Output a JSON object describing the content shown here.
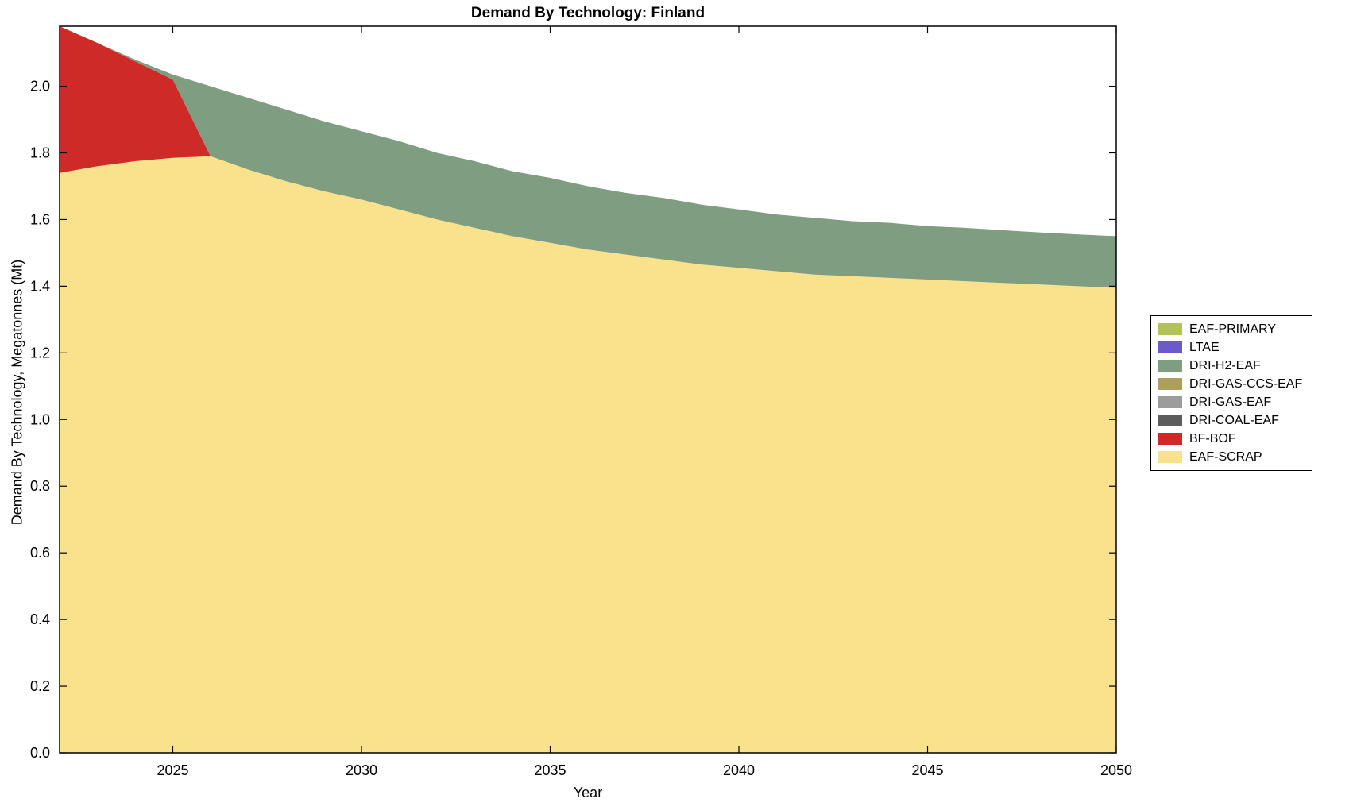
{
  "chart_data": {
    "type": "area",
    "stacked": true,
    "title": "Demand By Technology: Finland",
    "xlabel": "Year",
    "ylabel": "Demand By Technology, Megatonnes (Mt)",
    "x_range": [
      2022,
      2050
    ],
    "y_range": [
      0,
      2.18
    ],
    "x_ticks": [
      2025,
      2030,
      2035,
      2040,
      2045,
      2050
    ],
    "y_ticks": [
      0.0,
      0.2,
      0.4,
      0.6,
      0.8,
      1.0,
      1.2,
      1.4,
      1.6,
      1.8,
      2.0
    ],
    "grid": false,
    "years": [
      2022,
      2023,
      2024,
      2025,
      2026,
      2027,
      2028,
      2029,
      2030,
      2031,
      2032,
      2033,
      2034,
      2035,
      2036,
      2037,
      2038,
      2039,
      2040,
      2041,
      2042,
      2043,
      2044,
      2045,
      2046,
      2047,
      2048,
      2049,
      2050
    ],
    "stack_order_bottom_to_top": [
      "EAF-SCRAP",
      "BF-BOF",
      "DRI-COAL-EAF",
      "DRI-GAS-EAF",
      "DRI-GAS-CCS-EAF",
      "DRI-H2-EAF",
      "LTAE",
      "EAF-PRIMARY"
    ],
    "series": [
      {
        "name": "EAF-SCRAP",
        "color": "#FAE18C",
        "values": [
          1.74,
          1.76,
          1.775,
          1.785,
          1.79,
          1.75,
          1.715,
          1.685,
          1.66,
          1.63,
          1.6,
          1.575,
          1.55,
          1.53,
          1.51,
          1.495,
          1.48,
          1.465,
          1.455,
          1.445,
          1.435,
          1.43,
          1.425,
          1.42,
          1.415,
          1.41,
          1.405,
          1.4,
          1.395
        ]
      },
      {
        "name": "BF-BOF",
        "color": "#CE2A27",
        "values": [
          0.44,
          0.37,
          0.3,
          0.235,
          0,
          0,
          0,
          0,
          0,
          0,
          0,
          0,
          0,
          0,
          0,
          0,
          0,
          0,
          0,
          0,
          0,
          0,
          0,
          0,
          0,
          0,
          0,
          0,
          0
        ]
      },
      {
        "name": "DRI-COAL-EAF",
        "color": "#5C5C5C",
        "values": [
          0,
          0,
          0,
          0,
          0,
          0,
          0,
          0,
          0,
          0,
          0,
          0,
          0,
          0,
          0,
          0,
          0,
          0,
          0,
          0,
          0,
          0,
          0,
          0,
          0,
          0,
          0,
          0,
          0
        ]
      },
      {
        "name": "DRI-GAS-EAF",
        "color": "#9C9C9C",
        "values": [
          0,
          0,
          0,
          0,
          0,
          0,
          0,
          0,
          0,
          0,
          0,
          0,
          0,
          0,
          0,
          0,
          0,
          0,
          0,
          0,
          0,
          0,
          0,
          0,
          0,
          0,
          0,
          0,
          0
        ]
      },
      {
        "name": "DRI-GAS-CCS-EAF",
        "color": "#ACA05C",
        "values": [
          0,
          0,
          0,
          0,
          0,
          0,
          0,
          0,
          0,
          0,
          0,
          0,
          0,
          0,
          0,
          0,
          0,
          0,
          0,
          0,
          0,
          0,
          0,
          0,
          0,
          0,
          0,
          0,
          0
        ]
      },
      {
        "name": "DRI-H2-EAF",
        "color": "#7E9D81",
        "values": [
          0,
          0,
          0.005,
          0.015,
          0.21,
          0.215,
          0.215,
          0.21,
          0.205,
          0.205,
          0.2,
          0.2,
          0.195,
          0.195,
          0.19,
          0.185,
          0.185,
          0.18,
          0.175,
          0.17,
          0.17,
          0.165,
          0.165,
          0.16,
          0.16,
          0.158,
          0.156,
          0.155,
          0.155
        ]
      },
      {
        "name": "LTAE",
        "color": "#6A5ACB",
        "values": [
          0,
          0,
          0,
          0,
          0,
          0,
          0,
          0,
          0,
          0,
          0,
          0,
          0,
          0,
          0,
          0,
          0,
          0,
          0,
          0,
          0,
          0,
          0,
          0,
          0,
          0,
          0,
          0,
          0
        ]
      },
      {
        "name": "EAF-PRIMARY",
        "color": "#B4C359",
        "values": [
          0,
          0,
          0,
          0,
          0,
          0,
          0,
          0,
          0,
          0,
          0,
          0,
          0,
          0,
          0,
          0,
          0,
          0,
          0,
          0,
          0,
          0,
          0,
          0,
          0,
          0,
          0,
          0,
          0
        ]
      }
    ],
    "legend": {
      "position": "right-outside",
      "entries_top_to_bottom": [
        "EAF-PRIMARY",
        "LTAE",
        "DRI-H2-EAF",
        "DRI-GAS-CCS-EAF",
        "DRI-GAS-EAF",
        "DRI-COAL-EAF",
        "BF-BOF",
        "EAF-SCRAP"
      ]
    }
  }
}
